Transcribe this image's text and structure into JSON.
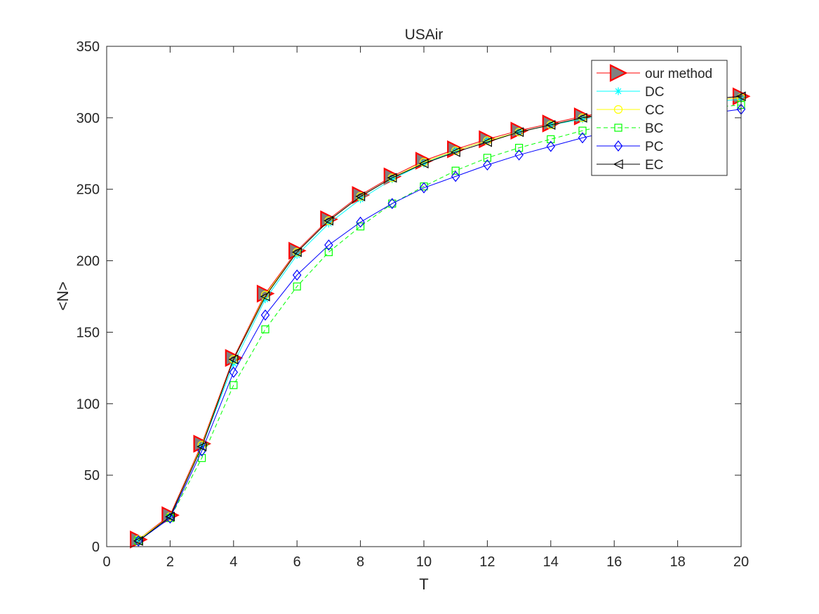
{
  "chart_data": {
    "type": "line",
    "title": "USAir",
    "xlabel": "T",
    "ylabel": "<N>",
    "xlim": [
      0,
      20
    ],
    "ylim": [
      0,
      350
    ],
    "xticks": [
      0,
      2,
      4,
      6,
      8,
      10,
      12,
      14,
      16,
      18,
      20
    ],
    "yticks": [
      0,
      50,
      100,
      150,
      200,
      250,
      300,
      350
    ],
    "grid": false,
    "legend_position": "top-right",
    "x": [
      1,
      2,
      3,
      4,
      5,
      6,
      7,
      8,
      9,
      10,
      11,
      12,
      13,
      14,
      15,
      16,
      17,
      18,
      19,
      20
    ],
    "series": [
      {
        "name": "our method",
        "color": "#ff0000",
        "marker": "triangle-right",
        "marker_fill": "#808080",
        "dash": "solid",
        "values": [
          5,
          22,
          72,
          132,
          177,
          207,
          229,
          246,
          259,
          270,
          278,
          285,
          291,
          296,
          301,
          305,
          308,
          311,
          313,
          315
        ]
      },
      {
        "name": "DC",
        "color": "#00ffff",
        "marker": "asterisk",
        "marker_fill": "none",
        "dash": "solid",
        "values": [
          5,
          21,
          70,
          128,
          173,
          204,
          226,
          243,
          257,
          268,
          277,
          284,
          290,
          295,
          299,
          303,
          306,
          309,
          311,
          313
        ]
      },
      {
        "name": "CC",
        "color": "#ffff00",
        "marker": "circle",
        "marker_fill": "none",
        "dash": "solid",
        "values": [
          5,
          21,
          71,
          131,
          176,
          206,
          228,
          245,
          258,
          269,
          277,
          284,
          290,
          295,
          300,
          304,
          307,
          310,
          312,
          314
        ]
      },
      {
        "name": "BC",
        "color": "#00ff00",
        "marker": "square",
        "marker_fill": "none",
        "dash": "dashed",
        "values": [
          4,
          20,
          62,
          113,
          152,
          182,
          206,
          224,
          240,
          252,
          263,
          272,
          279,
          285,
          291,
          296,
          300,
          304,
          307,
          309
        ]
      },
      {
        "name": "PC",
        "color": "#0000ff",
        "marker": "diamond",
        "marker_fill": "none",
        "dash": "solid",
        "values": [
          4,
          20,
          67,
          122,
          162,
          190,
          211,
          227,
          240,
          251,
          259,
          267,
          274,
          280,
          286,
          291,
          296,
          300,
          303,
          306
        ]
      },
      {
        "name": "EC",
        "color": "#000000",
        "marker": "triangle-left",
        "marker_fill": "none",
        "dash": "solid",
        "values": [
          4,
          21,
          70,
          131,
          175,
          206,
          228,
          245,
          258,
          268,
          276,
          283,
          290,
          295,
          300,
          304,
          307,
          310,
          313,
          315
        ]
      }
    ]
  }
}
